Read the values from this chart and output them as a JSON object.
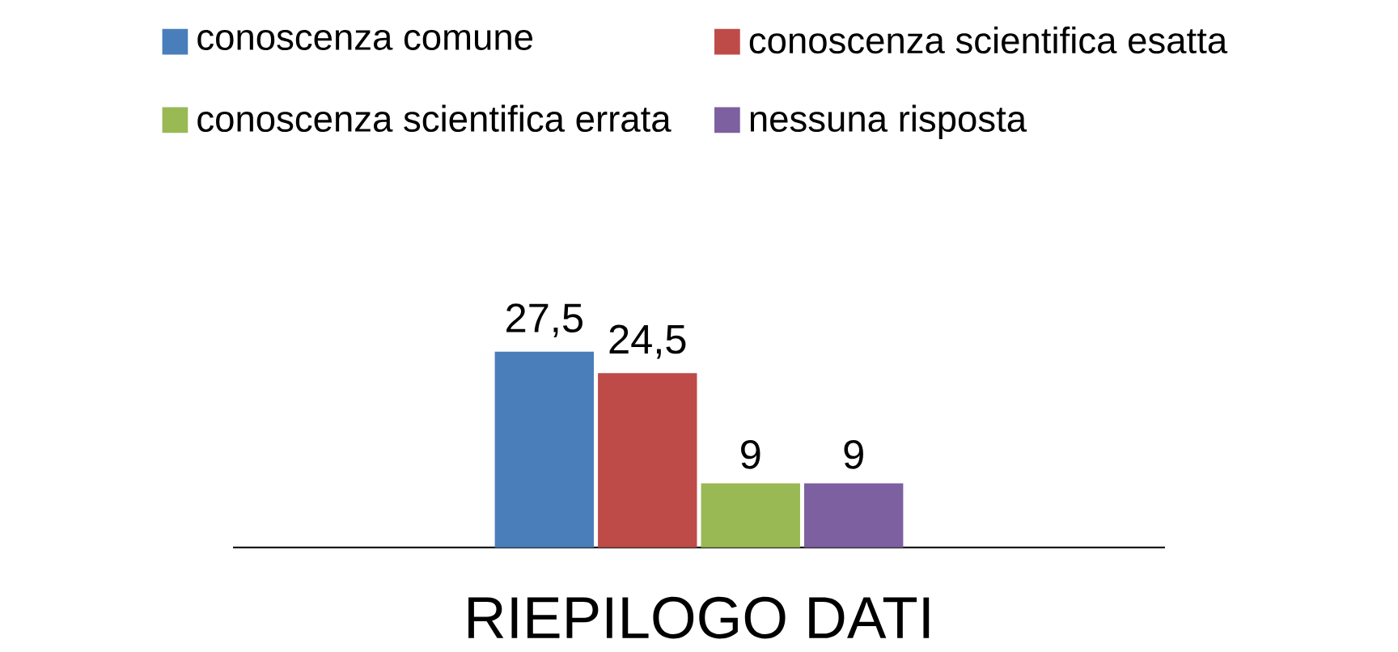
{
  "chart_data": {
    "type": "bar",
    "categories": [
      "RIEPILOGO DATI"
    ],
    "legend": "top",
    "series": [
      {
        "name": "conoscenza comune",
        "color": "#4a7ebb",
        "values": [
          27.5
        ],
        "value_labels": [
          "27,5"
        ]
      },
      {
        "name": "conoscenza scientifica esatta",
        "color": "#be4b48",
        "values": [
          24.5
        ],
        "value_labels": [
          "24,5"
        ]
      },
      {
        "name": "conoscenza scientifica errata",
        "color": "#98b954",
        "values": [
          9
        ],
        "value_labels": [
          "9"
        ]
      },
      {
        "name": "nessuna risposta",
        "color": "#7d60a0",
        "values": [
          9
        ],
        "value_labels": [
          "9"
        ]
      }
    ]
  }
}
